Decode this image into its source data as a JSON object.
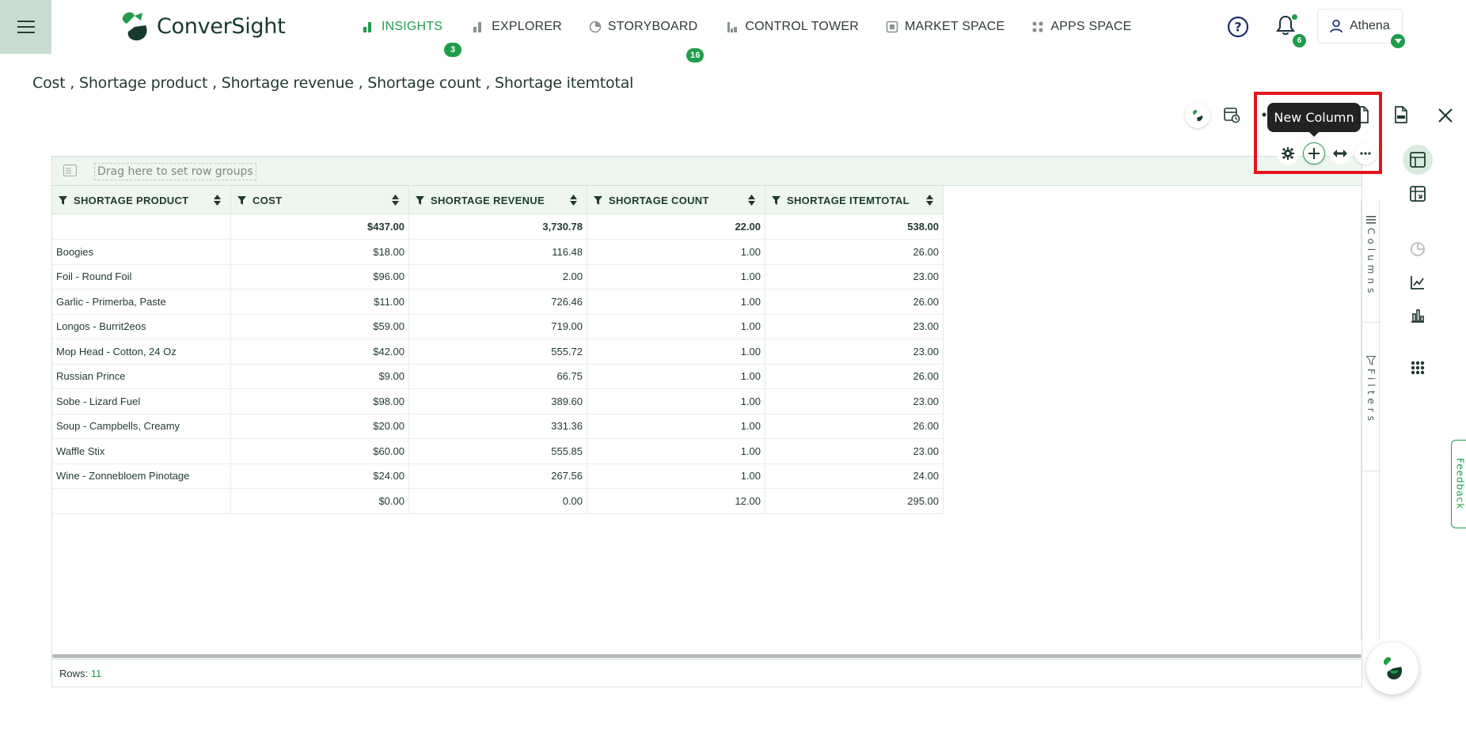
{
  "header": {
    "brand": "ConverSight",
    "nav": [
      {
        "label": "INSIGHTS",
        "badge": "3",
        "active": true
      },
      {
        "label": "EXPLORER",
        "badge": ""
      },
      {
        "label": "STORYBOARD",
        "badge": "16"
      },
      {
        "label": "CONTROL TOWER",
        "badge": ""
      },
      {
        "label": "MARKET SPACE",
        "badge": ""
      },
      {
        "label": "APPS SPACE",
        "badge": ""
      }
    ],
    "notifications_count": "6",
    "user_name": "Athena"
  },
  "page": {
    "title": "Cost , Shortage product , Shortage revenue , Shortage count , Shortage itemtotal"
  },
  "toolbar": {
    "tooltip": "New Column"
  },
  "grid": {
    "group_hint": "Drag here to set row groups",
    "columns": [
      "SHORTAGE PRODUCT",
      "COST",
      "SHORTAGE REVENUE",
      "SHORTAGE COUNT",
      "SHORTAGE ITEMTOTAL"
    ],
    "total_row": [
      "",
      "$437.00",
      "3,730.78",
      "22.00",
      "538.00"
    ],
    "rows": [
      [
        "Boogies",
        "$18.00",
        "116.48",
        "1.00",
        "26.00"
      ],
      [
        "Foil - Round Foil",
        "$96.00",
        "2.00",
        "1.00",
        "23.00"
      ],
      [
        "Garlic - Primerba, Paste",
        "$11.00",
        "726.46",
        "1.00",
        "26.00"
      ],
      [
        "Longos - Burrit2eos",
        "$59.00",
        "719.00",
        "1.00",
        "23.00"
      ],
      [
        "Mop Head - Cotton, 24 Oz",
        "$42.00",
        "555.72",
        "1.00",
        "23.00"
      ],
      [
        "Russian Prince",
        "$9.00",
        "66.75",
        "1.00",
        "26.00"
      ],
      [
        "Sobe - Lizard Fuel",
        "$98.00",
        "389.60",
        "1.00",
        "23.00"
      ],
      [
        "Soup - Campbells, Creamy",
        "$20.00",
        "331.36",
        "1.00",
        "26.00"
      ],
      [
        "Waffle Stix",
        "$60.00",
        "555.85",
        "1.00",
        "23.00"
      ],
      [
        "Wine - Zonnebloem Pinotage",
        "$24.00",
        "267.56",
        "1.00",
        "24.00"
      ],
      [
        "",
        "$0.00",
        "0.00",
        "12.00",
        "295.00"
      ]
    ],
    "rows_label": "Rows:",
    "rows_count": "11",
    "side_tabs": {
      "columns": "Columns",
      "filters": "Filters"
    }
  },
  "feedback_label": "Feedback",
  "colors": {
    "accent": "#1f9d4b",
    "highlight": "#e4141b",
    "header_bg": "#eef6f0"
  }
}
